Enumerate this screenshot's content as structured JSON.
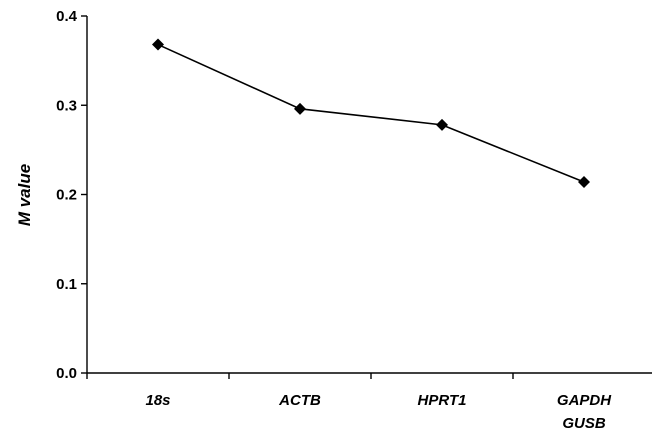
{
  "chart_data": {
    "type": "line",
    "categories": [
      [
        "18s"
      ],
      [
        "ACTB"
      ],
      [
        "HPRT1"
      ],
      [
        "GAPDH",
        "GUSB"
      ]
    ],
    "series": [
      {
        "values": [
          0.368,
          0.296,
          0.278,
          0.214
        ]
      }
    ],
    "xlabel": "",
    "ylabel": "M value",
    "ylim": [
      0,
      0.4
    ],
    "yticks": [
      "0.0",
      "0.1",
      "0.2",
      "0.3",
      "0.4"
    ],
    "grid": false,
    "legend": "none",
    "marker": "diamond",
    "line_color": "#000000"
  }
}
